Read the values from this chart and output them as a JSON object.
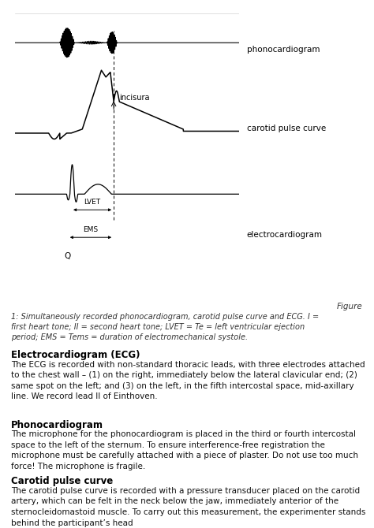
{
  "bg_color": "#ffffff",
  "fig_width": 4.74,
  "fig_height": 6.7,
  "dpi": 100,
  "figure_caption_right": "Figure",
  "figure_caption_body": "1: Simultaneously recorded phonocardiogram, carotid pulse curve and ECG. I =\nfirst heart tone; II = second heart tone; LVET = Te = left ventricular ejection\nperiod; EMS = Tems = duration of electromechanical systole.",
  "section1_title": "Electrocardiogram (ECG)",
  "section1_body": "The ECG is recorded with non-standard thoracic leads, with three electrodes attached to the chest wall – (1) on the right, immediately below the lateral clavicular end; (2) same spot on the left; and (3) on the left, in the fifth intercostal space, mid-axillary line. We record lead II of Einthoven.",
  "section2_title": "Phonocardiogram",
  "section2_body": "The microphone for the phonocardiogram is placed in the third or fourth intercostal space to the left of the sternum. To ensure interference-free registration the microphone must be carefully attached with a piece of plaster. Do not use too much force! The microphone is fragile.",
  "section3_title": "Carotid pulse curve",
  "section3_body": "The carotid pulse curve is recorded with a pressure transducer placed on the carotid artery, which can be felt in the neck below the jaw, immediately anterior of the sternocleidomastoid muscle. To carry out this measurement, the experimenter stands behind the participant’s head",
  "label_phonocardiogram": "phonocardiogram",
  "label_carotid": "carotid pulse curve",
  "label_ecg": "electrocardiogram",
  "label_incisura": "incisura",
  "label_lvet": "LVET",
  "label_ems": "EMS",
  "label_q": "Q"
}
